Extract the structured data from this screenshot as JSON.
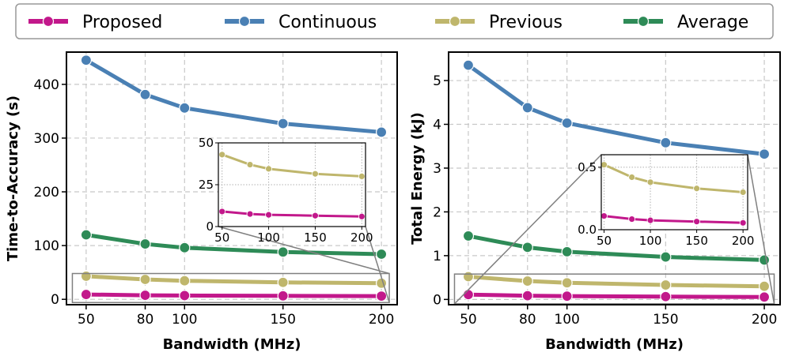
{
  "colors": {
    "Proposed": "#c2188b",
    "Continuous": "#4a80b4",
    "Previous": "#bfb66c",
    "Average": "#2e8b57"
  },
  "legend": {
    "placement": "top",
    "entries": [
      "Proposed",
      "Continuous",
      "Previous",
      "Average"
    ]
  },
  "chart_data": [
    {
      "type": "line",
      "xlabel": "Bandwidth (MHz)",
      "ylabel": "Time-to-Accuracy (s)",
      "x": [
        50,
        80,
        100,
        150,
        200
      ],
      "x_ticks": [
        "50",
        "80",
        "100",
        "150",
        "200"
      ],
      "y_ticks": [
        "0",
        "100",
        "200",
        "300",
        "400"
      ],
      "ylim": [
        -10,
        460
      ],
      "grid": true,
      "series": [
        {
          "name": "Proposed",
          "values": [
            9,
            7.5,
            7,
            6.5,
            6
          ]
        },
        {
          "name": "Continuous",
          "values": [
            445,
            381,
            356,
            327,
            311
          ]
        },
        {
          "name": "Previous",
          "values": [
            43,
            37,
            34.5,
            31.5,
            30
          ]
        },
        {
          "name": "Average",
          "values": [
            120,
            103,
            96,
            88,
            84
          ]
        }
      ],
      "inset": {
        "x_ticks": [
          "50",
          "100",
          "150",
          "200"
        ],
        "y_ticks": [
          "0",
          "25",
          "50"
        ],
        "ylim": [
          0,
          50
        ],
        "series_shown": [
          "Proposed",
          "Previous"
        ]
      }
    },
    {
      "type": "line",
      "xlabel": "Bandwidth (MHz)",
      "ylabel": "Total Energy (kJ)",
      "x": [
        50,
        80,
        100,
        150,
        200
      ],
      "x_ticks": [
        "50",
        "80",
        "100",
        "150",
        "200"
      ],
      "y_ticks": [
        "0",
        "1",
        "2",
        "3",
        "4",
        "5"
      ],
      "ylim": [
        -0.12,
        5.65
      ],
      "grid": true,
      "series": [
        {
          "name": "Proposed",
          "values": [
            0.11,
            0.085,
            0.075,
            0.065,
            0.055
          ]
        },
        {
          "name": "Continuous",
          "values": [
            5.35,
            4.38,
            4.03,
            3.58,
            3.32
          ]
        },
        {
          "name": "Previous",
          "values": [
            0.52,
            0.42,
            0.38,
            0.33,
            0.3
          ]
        },
        {
          "name": "Average",
          "values": [
            1.45,
            1.19,
            1.09,
            0.97,
            0.9
          ]
        }
      ],
      "inset": {
        "x_ticks": [
          "50",
          "100",
          "150",
          "200"
        ],
        "y_ticks": [
          "0.0",
          "0.5"
        ],
        "ylim": [
          0,
          0.6
        ],
        "series_shown": [
          "Proposed",
          "Previous"
        ]
      }
    }
  ]
}
